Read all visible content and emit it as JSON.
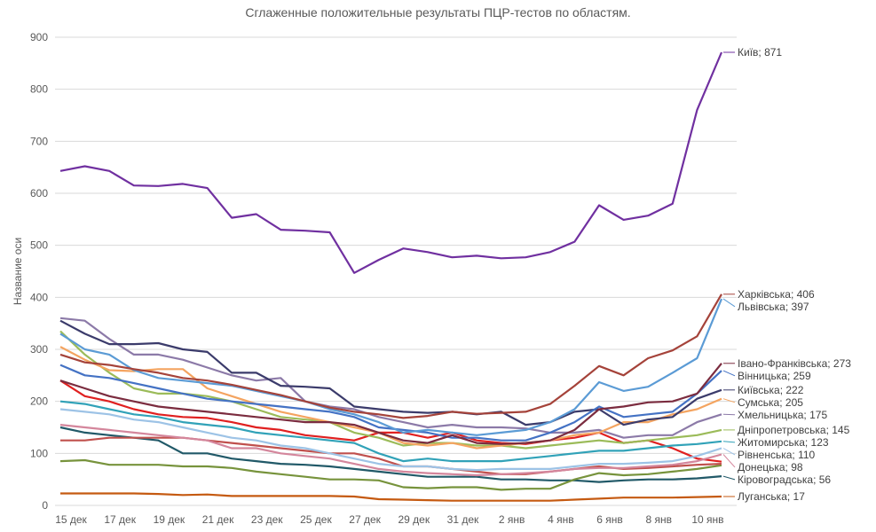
{
  "chart_data": {
    "type": "line",
    "title": "Сглаженные положительные результаты ПЦР-тестов по областям.",
    "ylabel": "Название оси",
    "xlabel": "",
    "ylim": [
      0,
      900
    ],
    "yticks": [
      0,
      100,
      200,
      300,
      400,
      500,
      600,
      700,
      800,
      900
    ],
    "grid": true,
    "legend": "none (end labels)",
    "x": [
      "15 дек",
      "16 дек",
      "17 дек",
      "18 дек",
      "19 дек",
      "20 дек",
      "21 дек",
      "22 дек",
      "23 дек",
      "24 дек",
      "25 дек",
      "26 дек",
      "27 дек",
      "28 дек",
      "29 дек",
      "30 дек",
      "31 дек",
      "1 янв",
      "2 янв",
      "3 янв",
      "4 янв",
      "5 янв",
      "6 янв",
      "7 янв",
      "8 янв",
      "9 янв",
      "10 янв",
      "11 янв"
    ],
    "xtick_labels": [
      "15 дек",
      "17 дек",
      "19 дек",
      "21 дек",
      "23 дек",
      "25 дек",
      "27 дек",
      "29 дек",
      "31 дек",
      "2 янв",
      "4 янв",
      "6 янв",
      "8 янв",
      "10 янв"
    ],
    "series": [
      {
        "name": "Київ",
        "label": "Київ; 871",
        "color": "#7030a0",
        "values": [
          643,
          652,
          643,
          615,
          614,
          618,
          610,
          553,
          560,
          530,
          528,
          525,
          447,
          472,
          494,
          487,
          477,
          480,
          475,
          477,
          487,
          507,
          577,
          549,
          557,
          580,
          760,
          871
        ]
      },
      {
        "name": "Харківська",
        "label": "Харківська; 406",
        "color": "#a5433a",
        "values": [
          290,
          275,
          270,
          262,
          255,
          245,
          240,
          232,
          222,
          212,
          200,
          188,
          180,
          175,
          168,
          172,
          180,
          176,
          178,
          180,
          195,
          230,
          268,
          250,
          283,
          298,
          325,
          406
        ]
      },
      {
        "name": "Львівська",
        "label": "Львівська; 397",
        "color": "#5b9bd5",
        "values": [
          330,
          300,
          290,
          260,
          245,
          240,
          235,
          230,
          220,
          210,
          200,
          185,
          175,
          160,
          140,
          145,
          140,
          135,
          140,
          145,
          160,
          185,
          237,
          220,
          228,
          255,
          283,
          397
        ]
      },
      {
        "name": "Івано-Франківська",
        "label": "Івано-Франківська; 273",
        "color": "#7b2c3f",
        "values": [
          240,
          225,
          210,
          200,
          190,
          185,
          180,
          175,
          170,
          165,
          160,
          160,
          155,
          140,
          125,
          120,
          135,
          120,
          118,
          120,
          125,
          145,
          185,
          190,
          198,
          200,
          215,
          273
        ]
      },
      {
        "name": "Вінницька",
        "label": "Вінницька; 259",
        "color": "#4472c4",
        "values": [
          270,
          250,
          245,
          235,
          225,
          215,
          205,
          200,
          195,
          190,
          185,
          180,
          170,
          150,
          145,
          140,
          130,
          130,
          125,
          125,
          140,
          160,
          190,
          170,
          175,
          180,
          215,
          259
        ]
      },
      {
        "name": "Київська",
        "label": "Київська; 222",
        "color": "#3b3b6b",
        "values": [
          355,
          330,
          310,
          310,
          312,
          300,
          295,
          255,
          255,
          230,
          228,
          225,
          190,
          185,
          180,
          178,
          180,
          175,
          180,
          155,
          160,
          180,
          185,
          155,
          165,
          170,
          205,
          222
        ]
      },
      {
        "name": "Сумська",
        "label": "Сумська; 205",
        "color": "#f4a460",
        "values": [
          305,
          280,
          260,
          258,
          262,
          262,
          225,
          210,
          195,
          180,
          170,
          160,
          150,
          140,
          120,
          115,
          120,
          110,
          115,
          120,
          125,
          135,
          140,
          160,
          160,
          175,
          185,
          205
        ]
      },
      {
        "name": "Хмельницька",
        "label": "Хмельницька; 175",
        "color": "#8c7aa8",
        "values": [
          360,
          355,
          320,
          290,
          290,
          280,
          265,
          250,
          240,
          245,
          200,
          190,
          185,
          170,
          160,
          150,
          155,
          150,
          150,
          148,
          140,
          140,
          145,
          130,
          135,
          135,
          160,
          175
        ]
      },
      {
        "name": "Дніпропетровська",
        "label": "Дніпропетровська; 145",
        "color": "#9bbb59",
        "values": [
          335,
          290,
          255,
          225,
          215,
          215,
          210,
          200,
          185,
          170,
          165,
          160,
          140,
          130,
          115,
          120,
          120,
          115,
          115,
          110,
          115,
          120,
          125,
          120,
          125,
          130,
          135,
          145
        ]
      },
      {
        "name": "Житомирська",
        "label": "Житомирська; 123",
        "color": "#31a2b8",
        "values": [
          200,
          195,
          185,
          175,
          170,
          160,
          155,
          150,
          140,
          135,
          130,
          125,
          120,
          100,
          85,
          90,
          85,
          85,
          85,
          90,
          95,
          100,
          105,
          105,
          110,
          115,
          118,
          123
        ]
      },
      {
        "name": "Рівненська",
        "label": "Рівненська; 110",
        "color": "#9dc3e6",
        "values": [
          185,
          180,
          175,
          165,
          160,
          150,
          140,
          130,
          125,
          115,
          110,
          100,
          90,
          80,
          75,
          75,
          70,
          68,
          70,
          70,
          70,
          75,
          80,
          80,
          82,
          85,
          95,
          110
        ]
      },
      {
        "name": "Донецька",
        "label": "Донецька; 98",
        "color": "#d4869c",
        "values": [
          155,
          150,
          145,
          140,
          135,
          130,
          125,
          110,
          110,
          100,
          95,
          90,
          80,
          70,
          65,
          62,
          60,
          58,
          60,
          62,
          65,
          70,
          72,
          72,
          75,
          78,
          85,
          98
        ]
      },
      {
        "name": "",
        "label": "",
        "color": "#e02020",
        "values": [
          240,
          210,
          200,
          185,
          175,
          170,
          168,
          160,
          150,
          145,
          135,
          130,
          125,
          140,
          140,
          130,
          140,
          125,
          120,
          118,
          125,
          130,
          140,
          120,
          125,
          110,
          90,
          84
        ]
      },
      {
        "name": "",
        "label": "",
        "color": "#c0504d",
        "values": [
          125,
          125,
          130,
          130,
          130,
          130,
          125,
          120,
          115,
          110,
          105,
          100,
          100,
          90,
          75,
          75,
          70,
          65,
          60,
          60,
          65,
          70,
          75,
          70,
          72,
          75,
          78,
          80
        ]
      },
      {
        "name": "",
        "label": "",
        "color": "#77933c",
        "values": [
          85,
          87,
          78,
          78,
          78,
          75,
          75,
          72,
          65,
          60,
          55,
          50,
          50,
          48,
          35,
          33,
          35,
          35,
          30,
          32,
          32,
          50,
          62,
          58,
          60,
          65,
          70,
          77
        ]
      },
      {
        "name": "Кіровоградська",
        "label": "Кіровоградська; 56",
        "color": "#215968",
        "values": [
          150,
          140,
          135,
          130,
          125,
          100,
          100,
          90,
          85,
          80,
          78,
          75,
          70,
          65,
          60,
          55,
          55,
          55,
          50,
          50,
          48,
          48,
          45,
          48,
          50,
          50,
          52,
          56
        ]
      },
      {
        "name": "Луганська",
        "label": "Луганська; 17",
        "color": "#c55a11",
        "values": [
          23,
          23,
          23,
          23,
          22,
          20,
          21,
          18,
          18,
          18,
          18,
          18,
          17,
          12,
          11,
          10,
          9,
          9,
          9,
          9,
          9,
          11,
          13,
          15,
          15,
          15,
          16,
          17
        ]
      }
    ]
  }
}
